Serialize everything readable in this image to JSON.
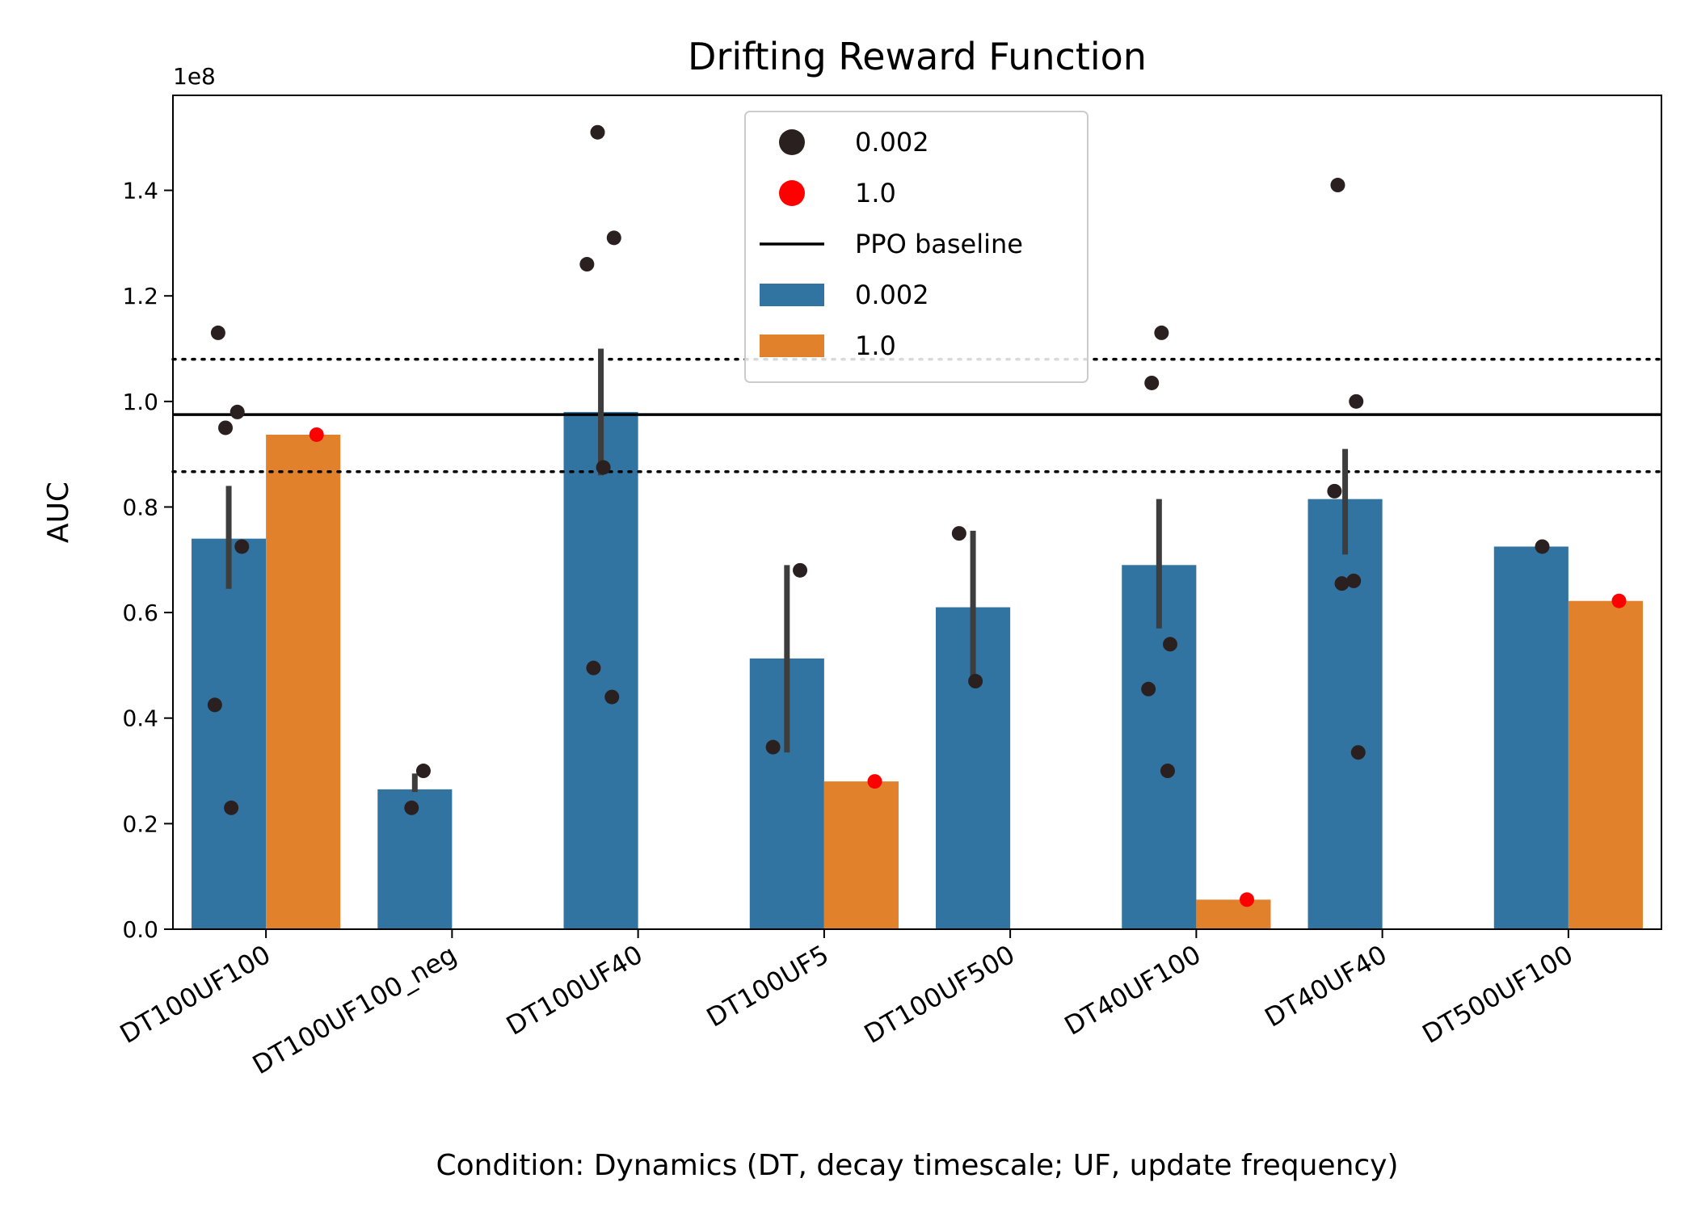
{
  "chart_data": {
    "type": "bar",
    "title": "Drifting Reward Function",
    "xlabel": "Condition: Dynamics (DT, decay timescale; UF, update frequency)",
    "ylabel": "AUC",
    "y_offset_label": "1e8",
    "y_scale": 100000000,
    "ylim": [
      0,
      1.58
    ],
    "yticks": [
      0.0,
      0.2,
      0.4,
      0.6,
      0.8,
      1.0,
      1.2,
      1.4
    ],
    "ytick_labels": [
      "0.0",
      "0.2",
      "0.4",
      "0.6",
      "0.8",
      "1.0",
      "1.2",
      "1.4"
    ],
    "grid": false,
    "legend_position": "top-center",
    "categories": [
      "DT100UF100",
      "DT100UF100_neg",
      "DT100UF40",
      "DT100UF5",
      "DT100UF500",
      "DT40UF100",
      "DT40UF40",
      "DT500UF100"
    ],
    "series": [
      {
        "name": "0.002",
        "color": "#3274a1",
        "values": [
          0.74,
          0.265,
          0.98,
          0.513,
          0.61,
          0.69,
          0.815,
          0.725
        ],
        "error_bars": [
          [
            0.645,
            0.84
          ],
          [
            0.26,
            0.295
          ],
          [
            0.86,
            1.1
          ],
          [
            0.335,
            0.69
          ],
          [
            0.465,
            0.755
          ],
          [
            0.57,
            0.815
          ],
          [
            0.71,
            0.91
          ],
          null
        ],
        "points": [
          [
            1.13,
            0.98,
            0.95,
            0.725,
            0.425,
            0.23
          ],
          [
            0.3,
            0.23
          ],
          [
            1.51,
            1.31,
            1.26,
            0.875,
            0.495,
            0.44
          ],
          [
            0.68,
            0.345
          ],
          [
            0.75,
            0.47
          ],
          [
            1.13,
            1.035,
            0.54,
            0.455,
            0.3
          ],
          [
            1.41,
            1.0,
            0.83,
            0.66,
            0.655,
            0.335
          ],
          [
            0.725
          ]
        ]
      },
      {
        "name": "1.0",
        "color": "#e1812c",
        "values": [
          0.937,
          null,
          null,
          0.28,
          null,
          0.056,
          null,
          0.622
        ],
        "points": [
          [
            0.937
          ],
          [],
          [],
          [
            0.28
          ],
          [],
          [
            0.056
          ],
          [],
          [
            0.622
          ]
        ]
      }
    ],
    "scatter_legend": [
      {
        "name": "0.002",
        "color": "#2b2020"
      },
      {
        "name": "1.0",
        "color": "#ff0000"
      }
    ],
    "baseline": {
      "name": "PPO baseline",
      "value": 0.975,
      "band": [
        0.867,
        1.08
      ]
    },
    "legend": [
      {
        "kind": "marker",
        "label": "0.002",
        "color": "#2b2020"
      },
      {
        "kind": "marker",
        "label": "1.0",
        "color": "#ff0000"
      },
      {
        "kind": "line",
        "label": "PPO baseline",
        "color": "#000000"
      },
      {
        "kind": "patch",
        "label": "0.002",
        "color": "#3274a1"
      },
      {
        "kind": "patch",
        "label": "1.0",
        "color": "#e1812c"
      }
    ]
  }
}
